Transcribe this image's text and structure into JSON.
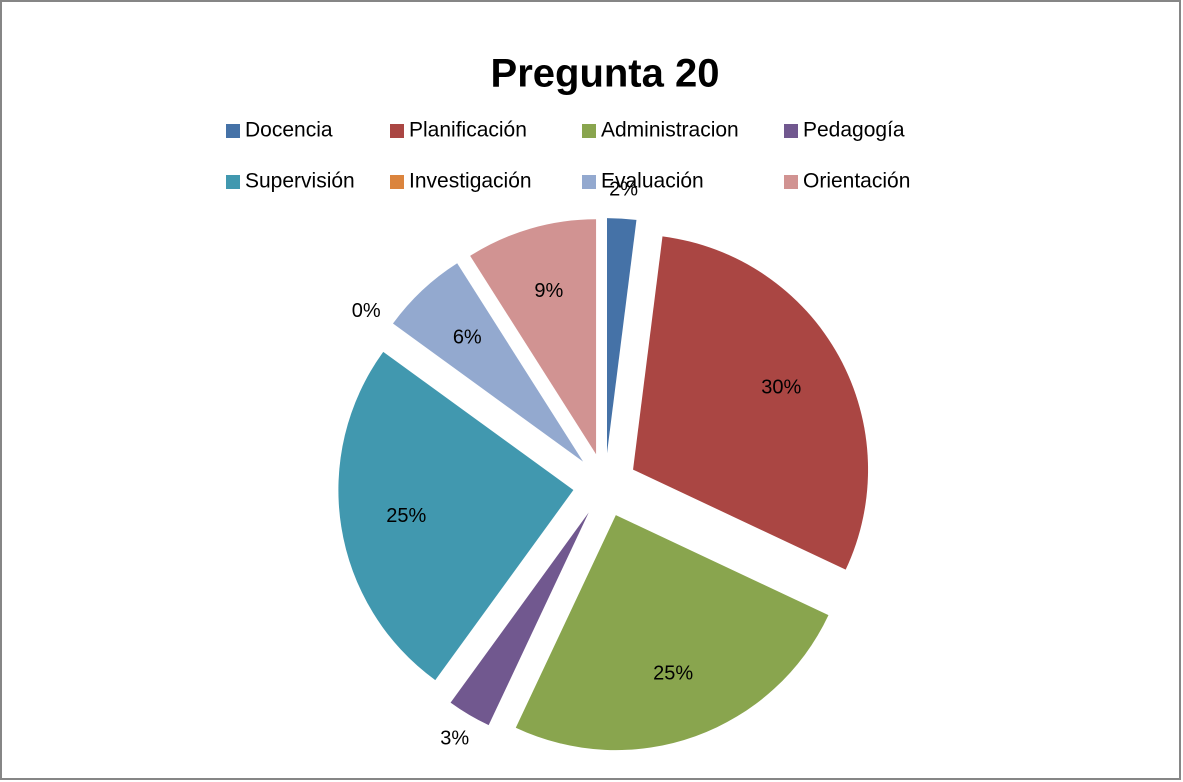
{
  "chart_data": {
    "type": "pie",
    "title": "Pregunta 20",
    "categories": [
      "Docencia",
      "Planificación",
      "Administracion",
      "Pedagogía",
      "Supervisión",
      "Investigación",
      "Evaluación",
      "Orientación"
    ],
    "values": [
      2,
      30,
      25,
      3,
      25,
      0,
      6,
      9
    ],
    "value_labels": [
      "2%",
      "30%",
      "25%",
      "3%",
      "25%",
      "0%",
      "6%",
      "9%"
    ],
    "colors": [
      "#4572a7",
      "#aa4643",
      "#89a54e",
      "#71588f",
      "#4198af",
      "#db843d",
      "#93a9cf",
      "#d19392"
    ],
    "legend": "top"
  }
}
